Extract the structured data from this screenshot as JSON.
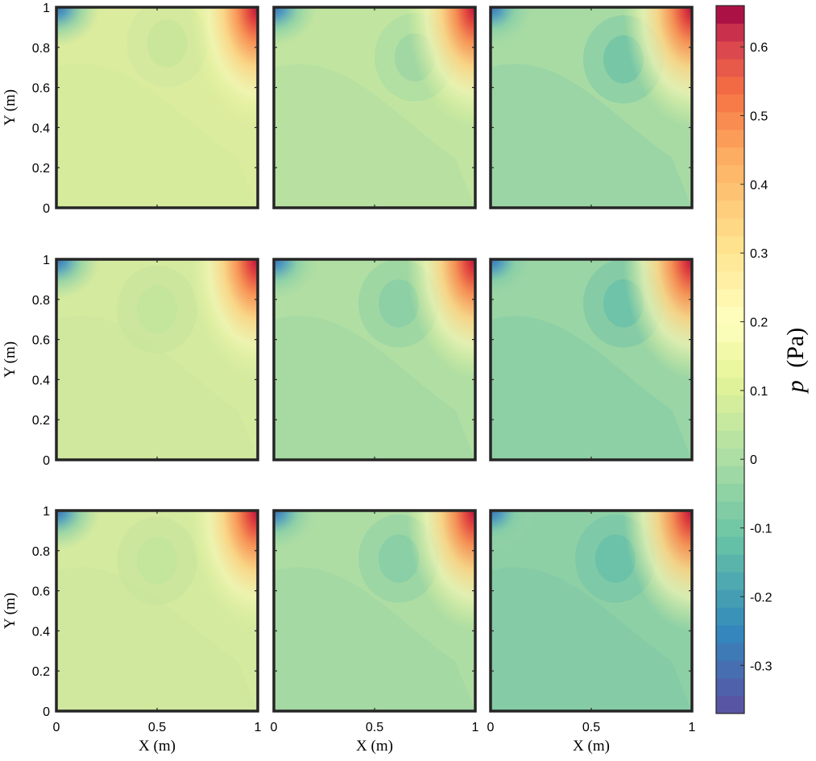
{
  "chart_data": {
    "type": "heatmap",
    "layout": "3x3 small multiples sharing one colorbar",
    "colormap": "Spectral (reversed): purple/blue = low, green = near zero, yellow, orange, dark red = high",
    "panels": [
      {
        "row": 1,
        "col": 1,
        "background": "#dcec9e",
        "blue_corner": "top-left",
        "red_corner": "top-right",
        "low_center": [
          0.55,
          0.82
        ],
        "low_color": "#c9e69b"
      },
      {
        "row": 1,
        "col": 2,
        "background": "#c1e5a0",
        "blue_corner": "top-left",
        "red_corner": "top-right",
        "low_center": [
          0.7,
          0.75
        ],
        "low_color": "#9fd6a3"
      },
      {
        "row": 1,
        "col": 3,
        "background": "#a8dba4",
        "blue_corner": "top-left",
        "red_corner": "top-right",
        "low_center": [
          0.66,
          0.74
        ],
        "low_color": "#74c5a7"
      },
      {
        "row": 2,
        "col": 1,
        "background": "#d4ea9f",
        "blue_corner": "top-left",
        "red_corner": "top-right",
        "low_center": [
          0.5,
          0.75
        ],
        "low_color": "#c3e49c"
      },
      {
        "row": 2,
        "col": 2,
        "background": "#b0dea3",
        "blue_corner": "top-left",
        "red_corner": "top-right",
        "low_center": [
          0.62,
          0.78
        ],
        "low_color": "#8ccfa5"
      },
      {
        "row": 2,
        "col": 3,
        "background": "#9ad5a5",
        "blue_corner": "top-left",
        "red_corner": "top-right",
        "low_center": [
          0.66,
          0.78
        ],
        "low_color": "#6dc2a8"
      },
      {
        "row": 3,
        "col": 1,
        "background": "#d4ea9f",
        "blue_corner": "top-left",
        "red_corner": "top-right",
        "low_center": [
          0.5,
          0.75
        ],
        "low_color": "#c3e49c"
      },
      {
        "row": 3,
        "col": 2,
        "background": "#aedda3",
        "blue_corner": "top-left",
        "red_corner": "top-right",
        "low_center": [
          0.62,
          0.76
        ],
        "low_color": "#88cea6"
      },
      {
        "row": 3,
        "col": 3,
        "background": "#8ed0a6",
        "blue_corner": "top-left",
        "red_corner": "top-right",
        "low_center": [
          0.62,
          0.76
        ],
        "low_color": "#6ac1a8"
      }
    ],
    "xlim": [
      0,
      1
    ],
    "ylim": [
      0,
      1
    ],
    "xticks": [
      "0",
      "0.5",
      "1"
    ],
    "yticks": [
      "0",
      "0.2",
      "0.4",
      "0.6",
      "0.8",
      "1"
    ],
    "xlabel": "X (m)",
    "ylabel": "Y (m)",
    "colorbar": {
      "label_var": "p",
      "label_unit": "(Pa)",
      "range": [
        -0.37,
        0.66
      ],
      "ticks": [
        "-0.3",
        "-0.2",
        "-0.1",
        "0",
        "0.1",
        "0.2",
        "0.3",
        "0.4",
        "0.5",
        "0.6"
      ],
      "tick_values": [
        -0.3,
        -0.2,
        -0.1,
        0,
        0.1,
        0.2,
        0.3,
        0.4,
        0.5,
        0.6
      ],
      "color_stops": [
        {
          "v": -0.37,
          "c": "#5e4fa2"
        },
        {
          "v": -0.25,
          "c": "#3288bd"
        },
        {
          "v": -0.12,
          "c": "#66c2a5"
        },
        {
          "v": 0.0,
          "c": "#abdda4"
        },
        {
          "v": 0.12,
          "c": "#e6f598"
        },
        {
          "v": 0.2,
          "c": "#ffffbf"
        },
        {
          "v": 0.32,
          "c": "#fee08b"
        },
        {
          "v": 0.44,
          "c": "#fdae61"
        },
        {
          "v": 0.54,
          "c": "#f46d43"
        },
        {
          "v": 0.61,
          "c": "#d53e4f"
        },
        {
          "v": 0.66,
          "c": "#9e0142"
        }
      ]
    }
  }
}
